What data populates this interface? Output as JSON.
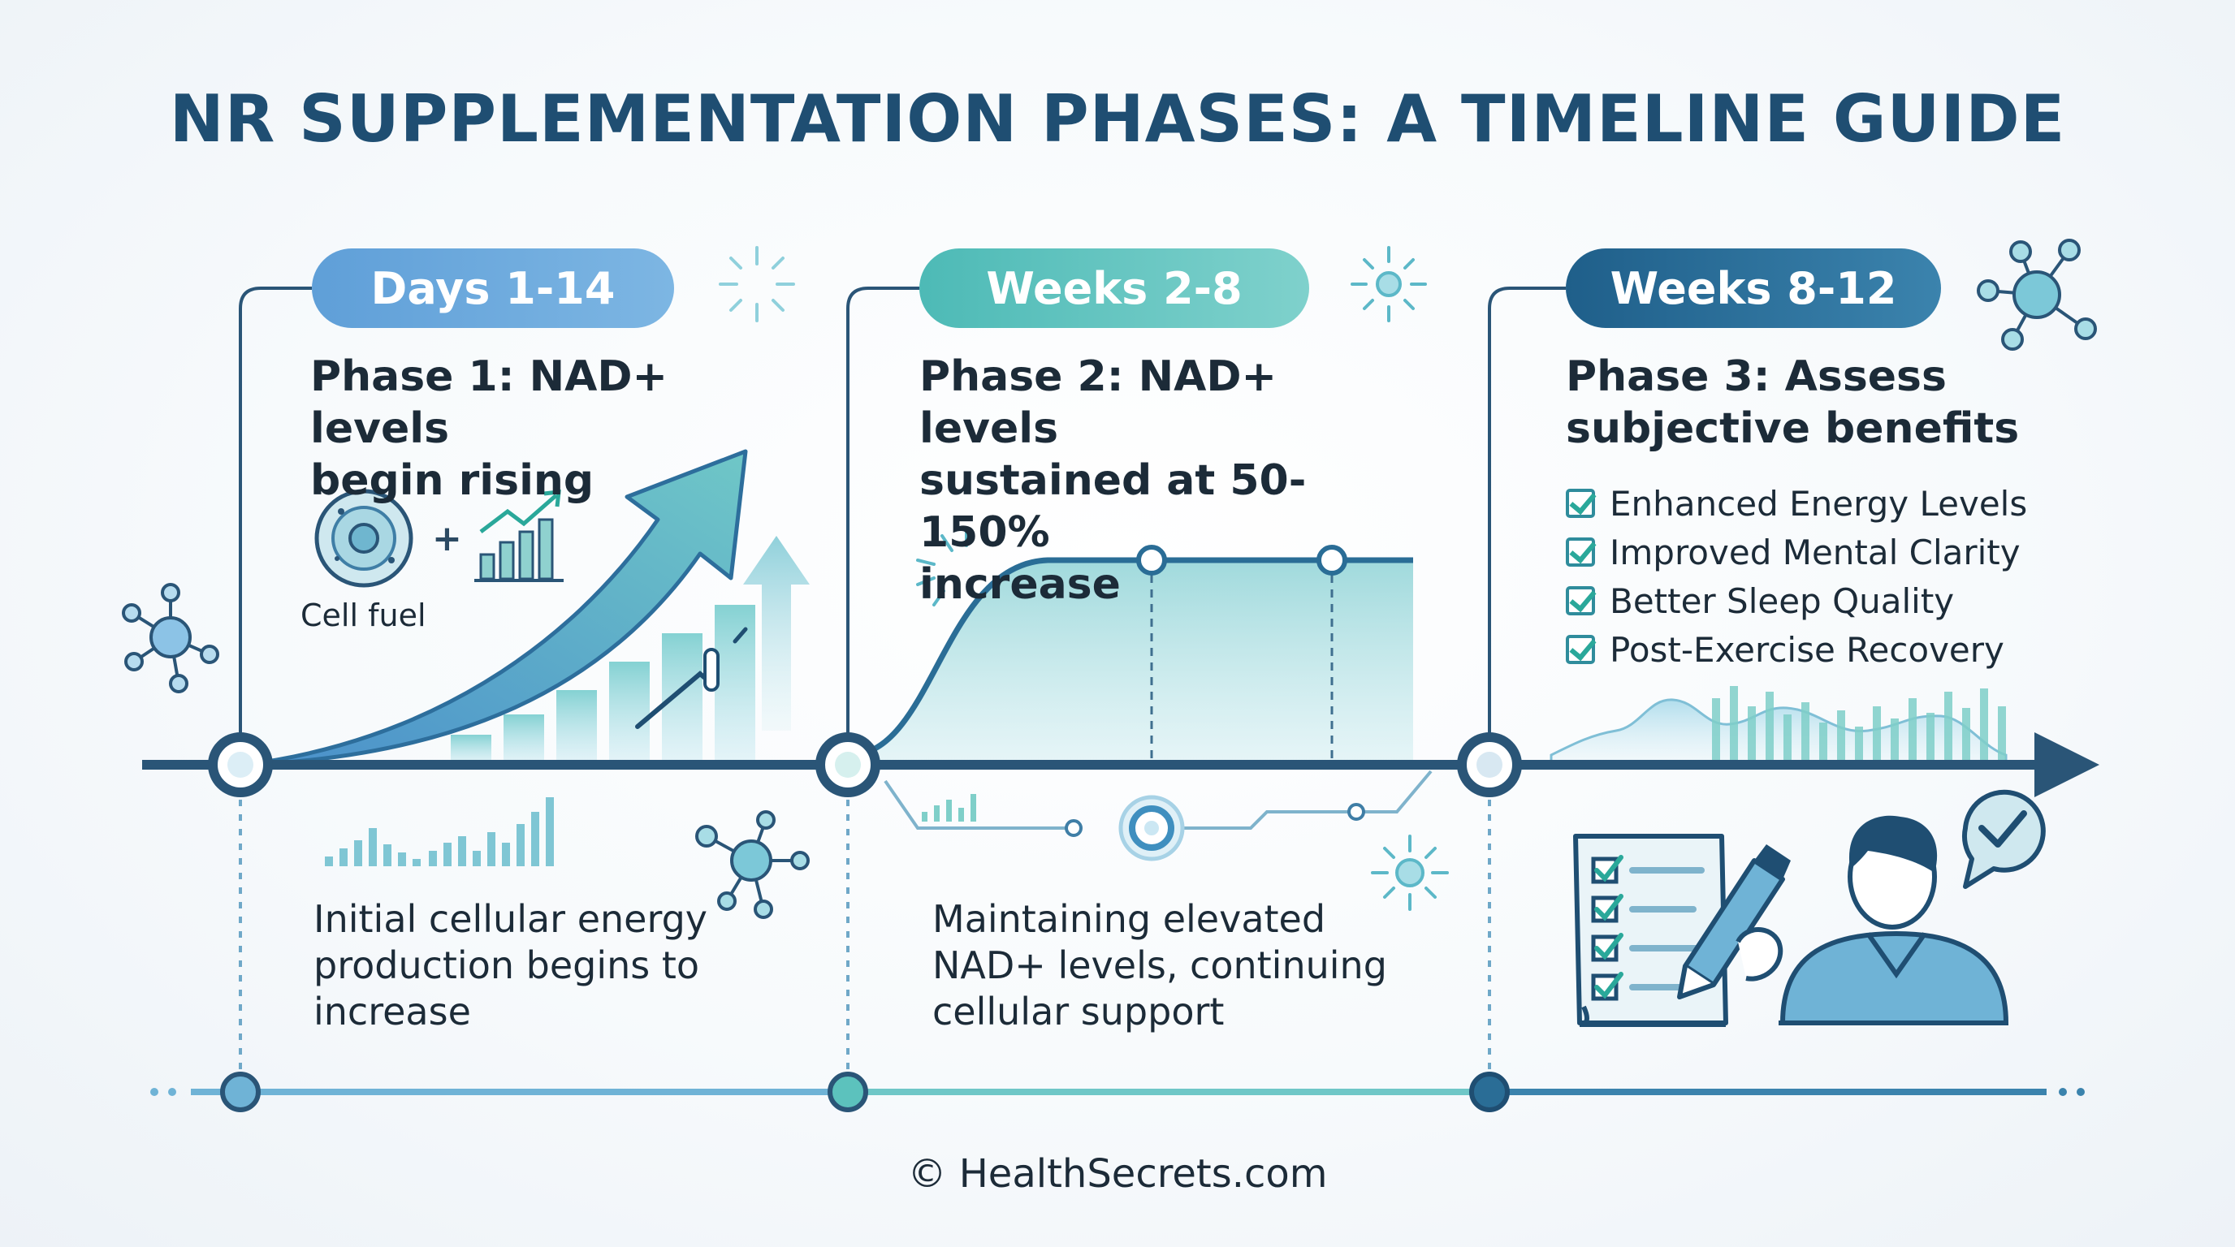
{
  "title": "NR SUPPLEMENTATION PHASES: A TIMELINE GUIDE",
  "phases": [
    {
      "period": "Days 1-14",
      "heading": "Phase 1: NAD+ levels\nbegin rising",
      "icon_label": "Cell fuel",
      "plus_sign": "+",
      "description": "Initial cellular energy\nproduction begins to\nincrease"
    },
    {
      "period": "Weeks 2-8",
      "heading": "Phase 2: NAD+ levels\nsustained at 50-150%\nincrease",
      "description": "Maintaining elevated\nNAD+ levels, continuing\ncellular support"
    },
    {
      "period": "Weeks 8-12",
      "heading": "Phase 3: Assess\nsubjective benefits",
      "benefits": [
        "Enhanced Energy Levels",
        "Improved Mental Clarity",
        "Better Sleep Quality",
        "Post-Exercise Recovery"
      ]
    }
  ],
  "footer": "© HealthSecrets.com",
  "colors": {
    "title": "#1f4e72",
    "phase1": "#6aa8dd",
    "phase2": "#5cc2bd",
    "phase3": "#2a6d96",
    "timeline": "#2a5577",
    "check": "#2aa89a"
  },
  "icons": [
    "molecule-icon",
    "cell-icon",
    "chart-icon",
    "sparkle-icon",
    "checklist-icon",
    "person-icon",
    "checkmark-bubble-icon"
  ]
}
